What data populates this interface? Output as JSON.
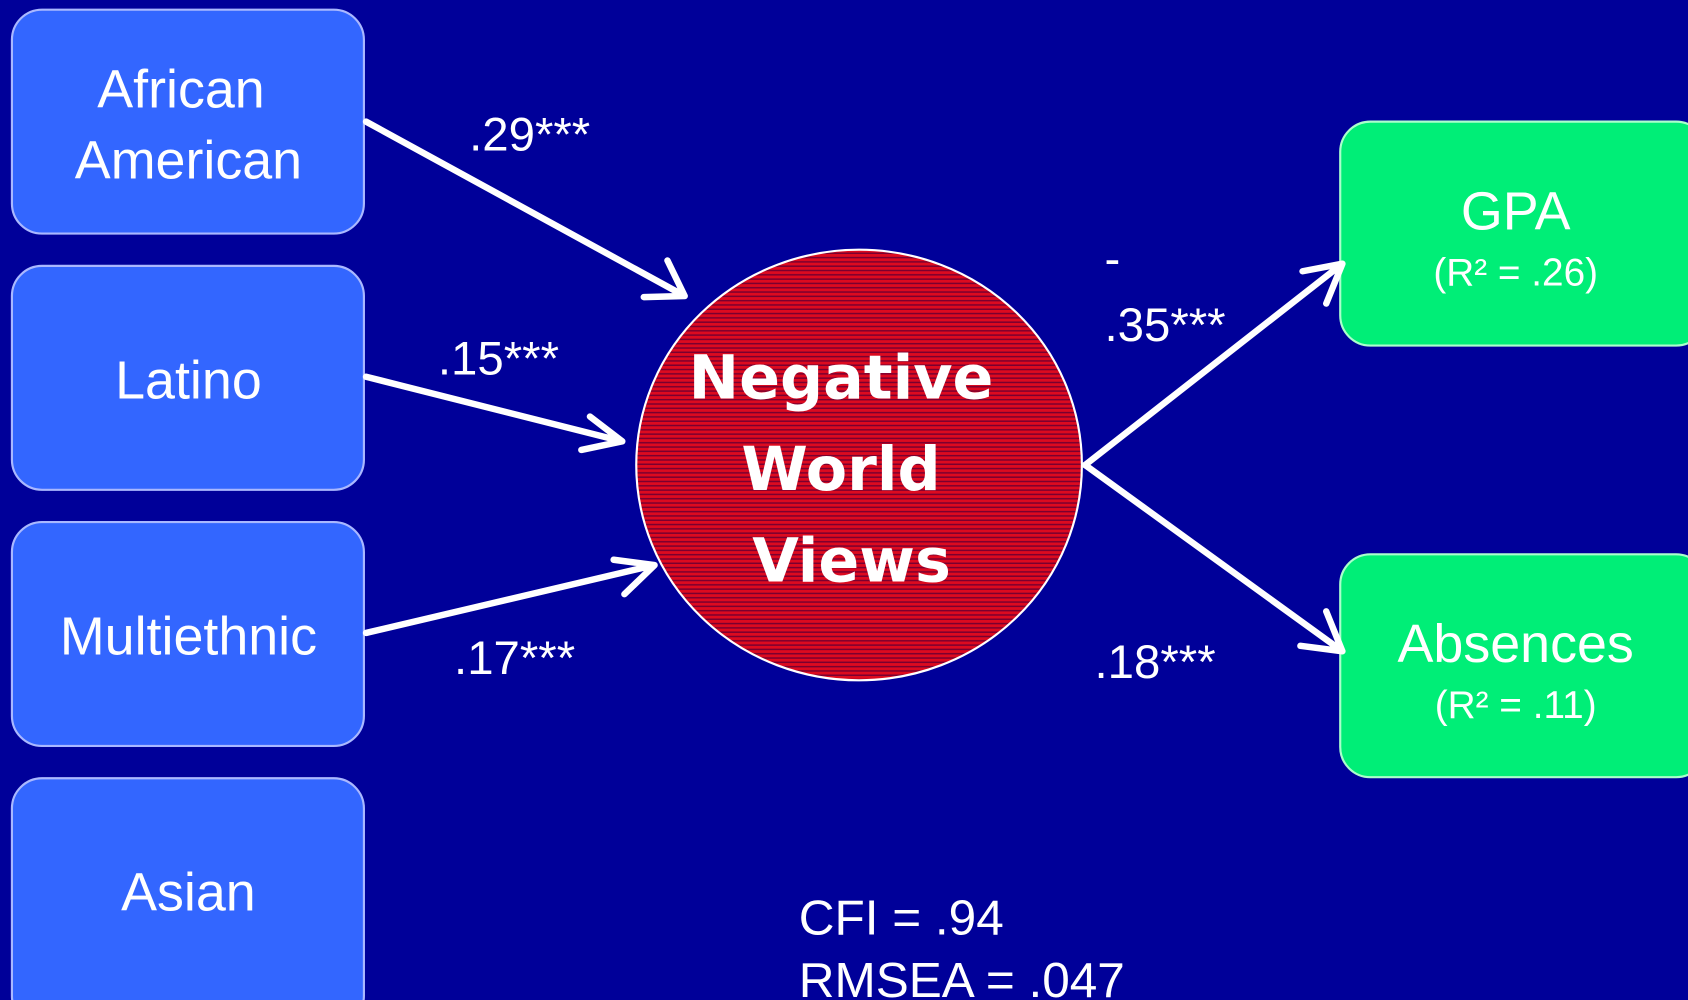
{
  "nodes": [
    {
      "lines": [
        "African",
        "American"
      ]
    },
    {
      "lines": [
        "Latino"
      ]
    },
    {
      "lines": [
        "Multiethnic"
      ]
    },
    {
      "lines": [
        "Asian"
      ]
    },
    {
      "lines": [
        "Negative",
        "World",
        "Views"
      ]
    },
    {
      "lines": [
        "GPA"
      ],
      "sub": "(R² = .26)"
    },
    {
      "lines": [
        "Absences"
      ],
      "sub": "(R² = .11)"
    }
  ],
  "edges": [
    {
      "lines": [
        ".29***"
      ]
    },
    {
      "lines": [
        ".15***"
      ]
    },
    {
      "lines": [
        ".17***"
      ]
    },
    {
      "lines": [
        "-",
        ".35***"
      ]
    },
    {
      "lines": [
        ".18***"
      ]
    }
  ],
  "fit": [
    "CFI = .94",
    "RMSEA = .047"
  ]
}
